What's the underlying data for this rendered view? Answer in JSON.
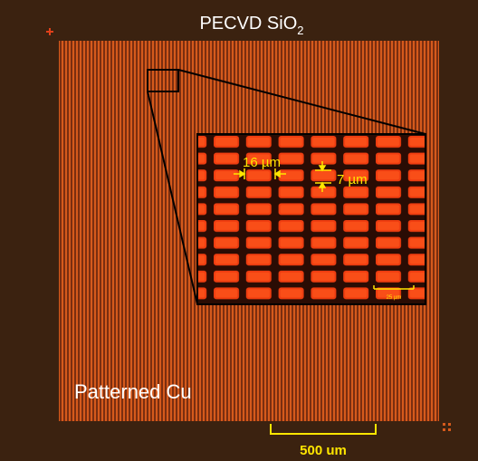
{
  "title": {
    "text": "PECVD SiO",
    "subscript": "2"
  },
  "labels": {
    "region": "Patterned Cu",
    "scale_bar": "500 um"
  },
  "inset": {
    "width_label": "16 µm",
    "spacing_label": "7 µm",
    "scale_bar": "25 µm"
  }
}
